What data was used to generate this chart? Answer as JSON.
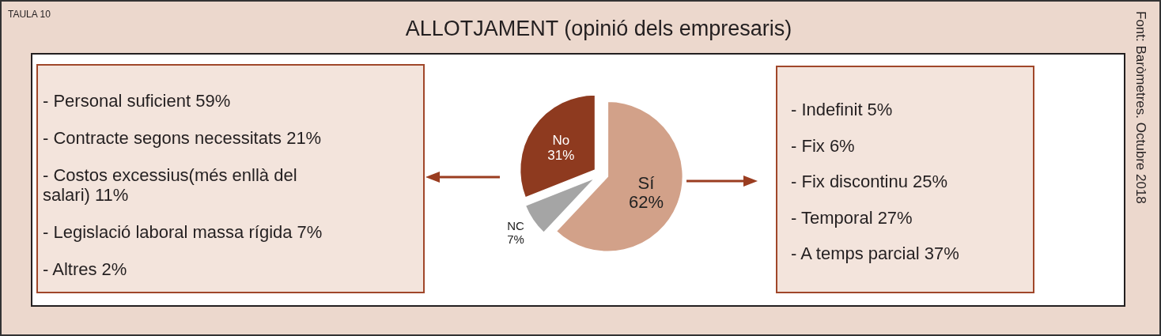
{
  "chart_data": {
    "type": "pie",
    "title": "ALLOTJAMENT (opinió dels empresaris)",
    "categories": [
      "Sí",
      "NC",
      "No"
    ],
    "values": [
      62,
      7,
      31
    ],
    "colors": [
      "#d2a189",
      "#a5a5a5",
      "#8e3a1f"
    ],
    "value_labels": [
      "62%",
      "7%",
      "31%"
    ],
    "annotations": [
      "TAULA 10",
      "Font: Baròmetres. Octubre 2018",
      "- Personal suficient 59%",
      "- Contracte segons necessitats 21%",
      "- Costos excessius(més enllà del salari) 11%",
      "- Legislació laboral massa rígida 7%",
      "- Altres 2%",
      "- Indefinit 5%",
      "- Fix 6%",
      "- Fix discontinu 25%",
      "- Temporal 27%",
      "- A temps parcial 37%"
    ]
  }
}
